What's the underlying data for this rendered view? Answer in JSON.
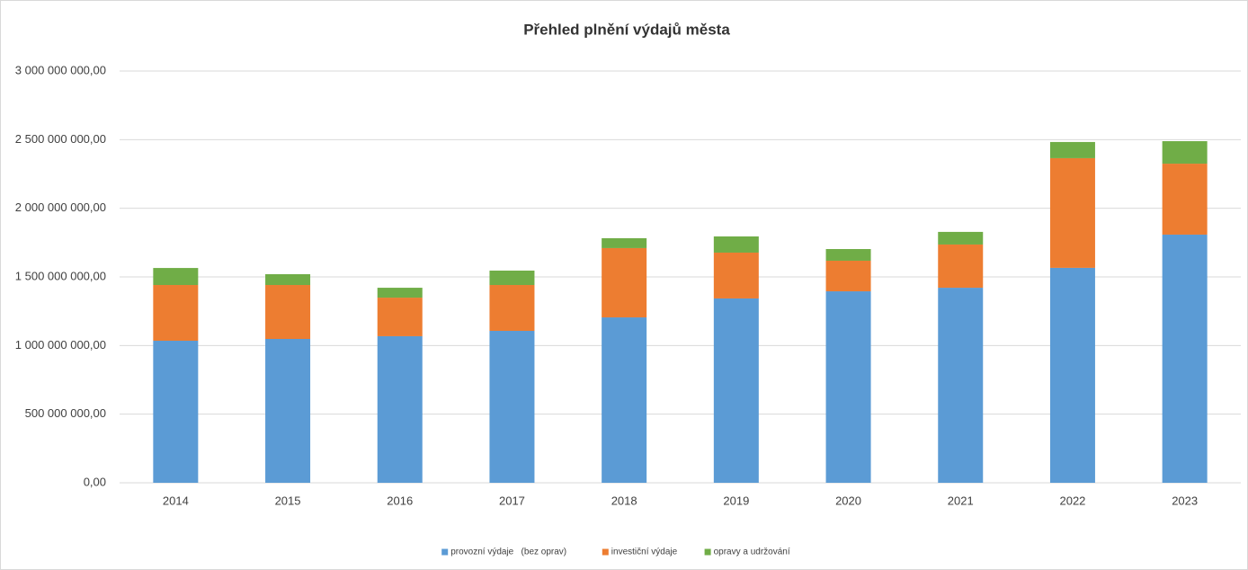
{
  "chart_data": {
    "type": "stacked_bar",
    "title": "Přehled plnění výdajů města",
    "categories": [
      "2014",
      "2015",
      "2016",
      "2017",
      "2018",
      "2019",
      "2020",
      "2021",
      "2022",
      "2023"
    ],
    "series": [
      {
        "name": "provozní výdaje   (bez oprav)",
        "color": "#5b9bd5",
        "values": [
          1035000000,
          1048000000,
          1068000000,
          1107000000,
          1205000000,
          1343000000,
          1395000000,
          1421000000,
          1566000000,
          1808000000
        ]
      },
      {
        "name": "investiční výdaje",
        "color": "#ed7d31",
        "values": [
          406000000,
          393000000,
          281000000,
          334000000,
          505000000,
          334000000,
          223000000,
          315000000,
          799000000,
          517000000
        ]
      },
      {
        "name": "opravy a udržování",
        "color": "#70ad47",
        "values": [
          124000000,
          79000000,
          72000000,
          105000000,
          72000000,
          118000000,
          85000000,
          92000000,
          118000000,
          164000000
        ]
      }
    ],
    "ylim": [
      0,
      3000000000
    ],
    "yticks": [
      {
        "value": 0,
        "label": "0,00"
      },
      {
        "value": 500000000,
        "label": "500 000 000,00"
      },
      {
        "value": 1000000000,
        "label": "1 000 000 000,00"
      },
      {
        "value": 1500000000,
        "label": "1 500 000 000,00"
      },
      {
        "value": 2000000000,
        "label": "2 000 000 000,00"
      },
      {
        "value": 2500000000,
        "label": "2 500 000 000,00"
      },
      {
        "value": 3000000000,
        "label": "3 000 000 000,00"
      }
    ],
    "grid": true,
    "legend": "bottom"
  }
}
